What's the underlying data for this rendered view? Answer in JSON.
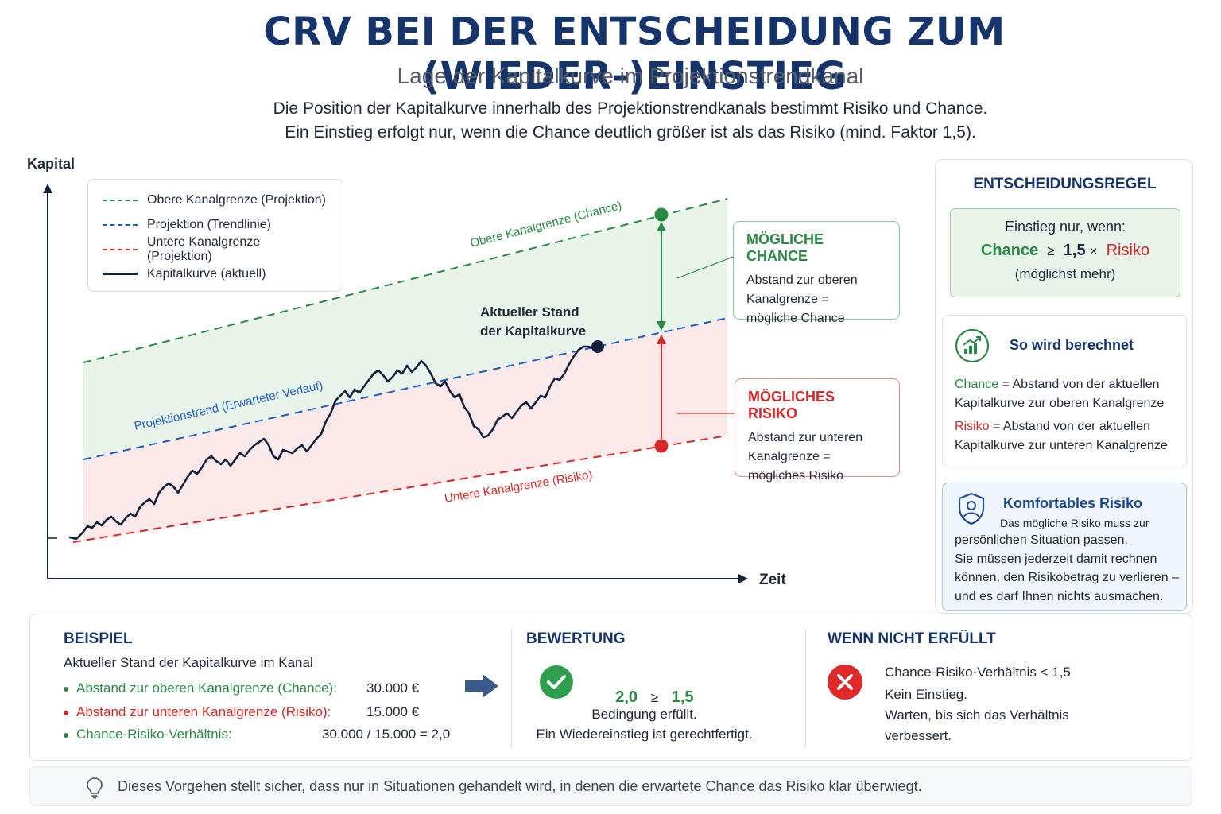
{
  "header": {
    "title": "CRV BEI DER ENTSCHEIDUNG ZUM (WIEDER-)EINSTIEG",
    "subtitle": "Lage der Kapitalkurve im Projektionstrendkanal",
    "intro_line1": "Die Position der Kapitalkurve innerhalb des Projektionstrendkanals bestimmt Risiko und Chance.",
    "intro_line2": "Ein Einstieg erfolgt nur, wenn die Chance deutlich größer ist als das Risiko (mind. Faktor 1,5)."
  },
  "diagram": {
    "y_axis_label": "Kapital",
    "x_axis_label": "Zeit",
    "upper_line_label": "Obere Kanalgrenze (Chance)",
    "trend_line_label": "Projektionstrend (Erwarteter Verlauf)",
    "lower_line_label": "Untere Kanalgrenze (Risiko)",
    "current_label_1": "Aktueller Stand",
    "current_label_2": "der Kapitalkurve",
    "colors": {
      "upper": "#2a8a45",
      "trend": "#1f5fc4",
      "lower": "#d62828",
      "curve": "#14213d",
      "chance_fill": "#e8f4ea",
      "risk_fill": "#fbe9e9",
      "axis": "#14213d"
    }
  },
  "legend": {
    "items": [
      {
        "label": "Obere Kanalgrenze (Projektion)",
        "color": "#2a8a45",
        "style": "dashed"
      },
      {
        "label": "Projektion (Trendlinie)",
        "color": "#1f5fc4",
        "style": "dashed"
      },
      {
        "label": "Untere Kanalgrenze (Projektion)",
        "color": "#d62828",
        "style": "dashed"
      },
      {
        "label": "Kapitalkurve (aktuell)",
        "color": "#14213d",
        "style": "solid"
      }
    ]
  },
  "callouts": {
    "chance": {
      "title": "MÖGLICHE CHANCE",
      "line1": "Abstand zur oberen",
      "line2": "Kanalgrenze =",
      "line3": "mögliche Chance"
    },
    "risk": {
      "title": "MÖGLICHES RISIKO",
      "line1": "Abstand zur unteren",
      "line2": "Kanalgrenze =",
      "line3": "mögliches Risiko"
    }
  },
  "sidebar": {
    "title": "ENTSCHEIDUNGSREGEL",
    "rule": {
      "line1": "Einstieg nur, wenn:",
      "chance": "Chance",
      "geq": "≥",
      "factor": "1,5",
      "times": "×",
      "risk": "Risiko",
      "line3": "(möglichst mehr)"
    },
    "calc": {
      "icon": "growth-chart-icon",
      "title": "So wird berechnet",
      "chance_term": "Chance",
      "chance_text": " = Abstand von der aktuellen Kapitalkurve zur oberen Kanalgrenze",
      "risk_term": "Risiko",
      "risk_text": " = Abstand von der aktuellen Kapitalkurve zur unteren Kanalgrenze"
    },
    "comfort": {
      "icon": "shield-user-icon",
      "title": "Komfortables Risiko",
      "text1": "Das mögliche Risiko muss zur",
      "text2": "persönlichen Situation passen.",
      "text3": "Sie müssen jederzeit damit rechnen können, den Risikobetrag zu verlieren – und es darf Ihnen nichts ausmachen."
    }
  },
  "example": {
    "title": "BEISPIEL",
    "intro": "Aktueller Stand der Kapitalkurve im Kanal",
    "row1_label": "Abstand zur oberen Kanalgrenze (Chance):",
    "row1_value": "30.000 €",
    "row2_label": "Abstand zur unteren Kanalgrenze  (Risiko):",
    "row2_value": "15.000 €",
    "row3_label": "Chance-Risiko-Verhältnis:",
    "row3_value": "30.000 / 15.000 = 2,0"
  },
  "evaluation": {
    "title": "BEWERTUNG",
    "value": "2,0",
    "geq": "≥",
    "threshold": "1,5",
    "line1": "Bedingung erfüllt.",
    "line2": "Ein Wiedereinstieg ist gerechtfertigt."
  },
  "not_met": {
    "title": "WENN NICHT ERFÜLLT",
    "line1": "Chance-Risiko-Verhältnis < 1,5",
    "line2": "Kein Einstieg.",
    "line3": "Warten, bis sich das Verhältnis",
    "line4": "verbessert."
  },
  "footer": {
    "icon": "lightbulb-icon",
    "text": "Dieses Vorgehen stellt sicher, dass nur in Situationen gehandelt wird, in denen die erwartete Chance das Risiko klar überwiegt."
  }
}
